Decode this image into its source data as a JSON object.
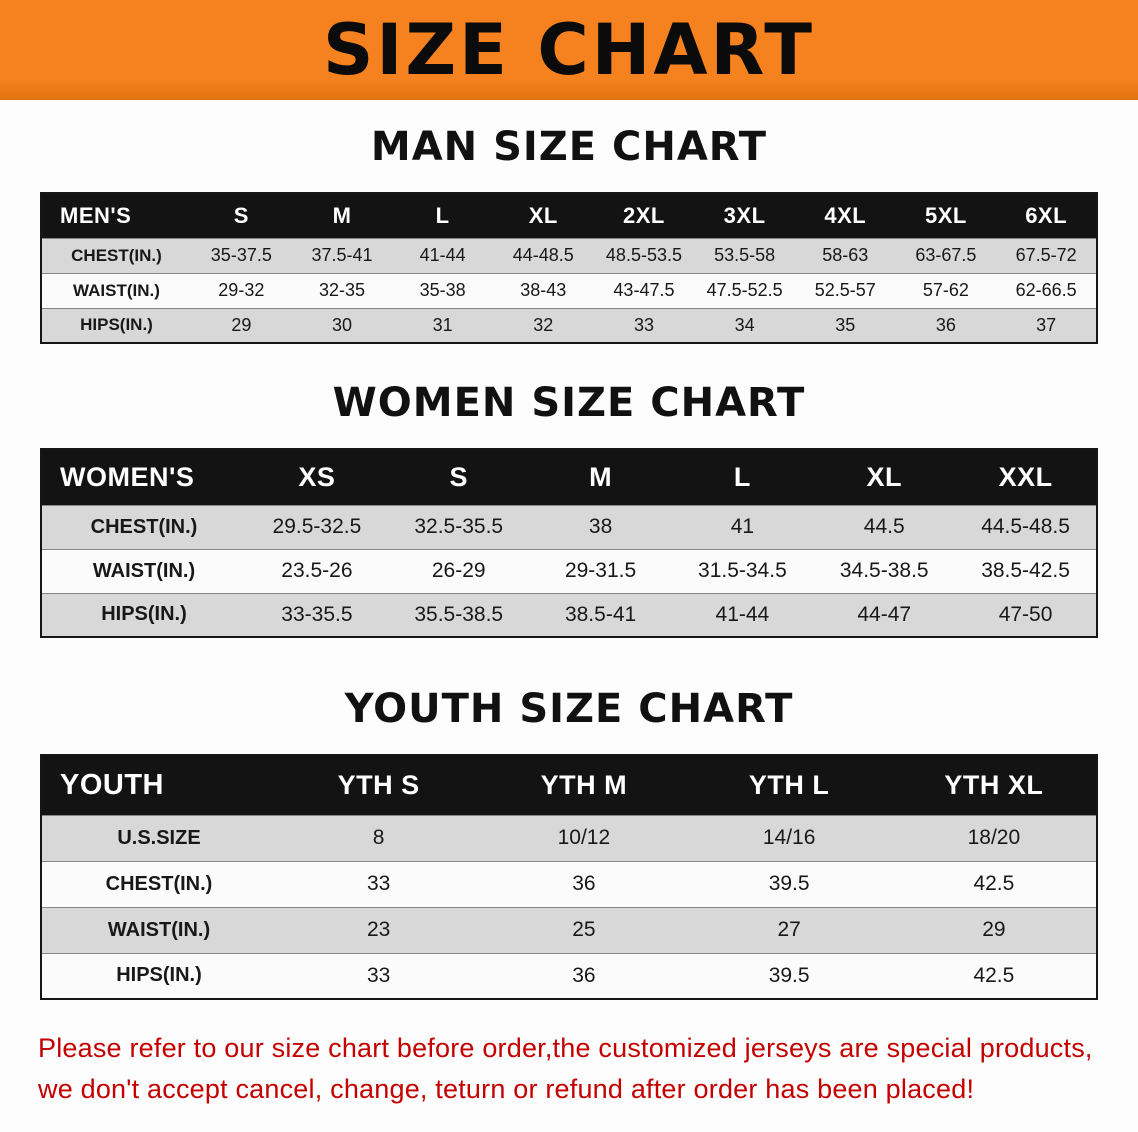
{
  "colors": {
    "banner_bg": "#f5821f",
    "header_bg": "#131313",
    "row_gray": "#d8d8d8",
    "disclaimer_red": "#c40000"
  },
  "banner": {
    "title": "SIZE CHART"
  },
  "sections": [
    {
      "id": "men",
      "heading": "MAN SIZE CHART",
      "table": {
        "header": [
          "MEN'S",
          "S",
          "M",
          "L",
          "XL",
          "2XL",
          "3XL",
          "4XL",
          "5XL",
          "6XL"
        ],
        "rows": [
          [
            "CHEST(IN.)",
            "35-37.5",
            "37.5-41",
            "41-44",
            "44-48.5",
            "48.5-53.5",
            "53.5-58",
            "58-63",
            "63-67.5",
            "67.5-72"
          ],
          [
            "WAIST(IN.)",
            "29-32",
            "32-35",
            "35-38",
            "38-43",
            "43-47.5",
            "47.5-52.5",
            "52.5-57",
            "57-62",
            "62-66.5"
          ],
          [
            "HIPS(IN.)",
            "29",
            "30",
            "31",
            "32",
            "33",
            "34",
            "35",
            "36",
            "37"
          ]
        ]
      }
    },
    {
      "id": "women",
      "heading": "WOMEN SIZE CHART",
      "table": {
        "header": [
          "WOMEN'S",
          "XS",
          "S",
          "M",
          "L",
          "XL",
          "XXL"
        ],
        "rows": [
          [
            "CHEST(IN.)",
            "29.5-32.5",
            "32.5-35.5",
            "38",
            "41",
            "44.5",
            "44.5-48.5"
          ],
          [
            "WAIST(IN.)",
            "23.5-26",
            "26-29",
            "29-31.5",
            "31.5-34.5",
            "34.5-38.5",
            "38.5-42.5"
          ],
          [
            "HIPS(IN.)",
            "33-35.5",
            "35.5-38.5",
            "38.5-41",
            "41-44",
            "44-47",
            "47-50"
          ]
        ]
      }
    },
    {
      "id": "youth",
      "heading": "YOUTH SIZE CHART",
      "table": {
        "header": [
          "YOUTH",
          "YTH S",
          "YTH M",
          "YTH L",
          "YTH XL"
        ],
        "rows": [
          [
            "U.S.SIZE",
            "8",
            "10/12",
            "14/16",
            "18/20"
          ],
          [
            "CHEST(IN.)",
            "33",
            "36",
            "39.5",
            "42.5"
          ],
          [
            "WAIST(IN.)",
            "23",
            "25",
            "27",
            "29"
          ],
          [
            "HIPS(IN.)",
            "33",
            "36",
            "39.5",
            "42.5"
          ]
        ]
      }
    }
  ],
  "disclaimer": {
    "line1": "Please refer to our size chart before order,the customized jerseys are special products,",
    "line2": "we don't accept cancel, change, teturn or refund after order has been placed!"
  }
}
